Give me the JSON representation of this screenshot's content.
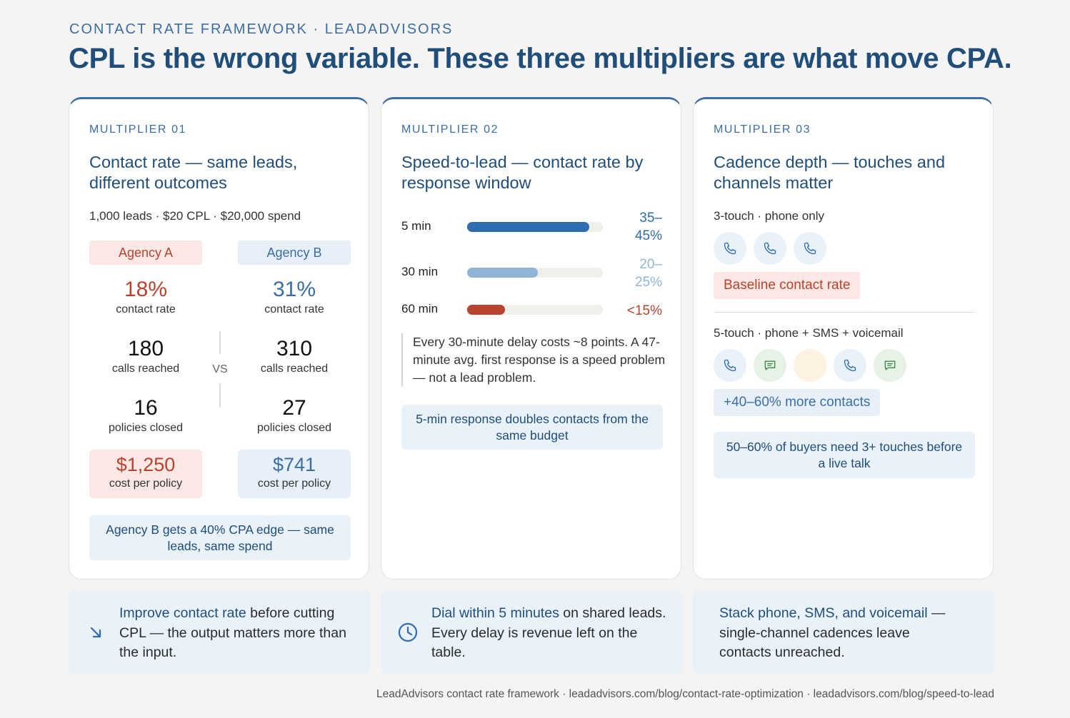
{
  "header": {
    "eyebrow": "CONTACT RATE FRAMEWORK · LEADADVISORS",
    "headline": "CPL is the wrong variable. These three multipliers are what move CPA."
  },
  "card1": {
    "kicker": "MULTIPLIER 01",
    "title": "Contact rate — same leads, different outcomes",
    "meta": "1,000 leads · $20 CPL · $20,000 spend",
    "agency_a": "Agency A",
    "agency_b": "Agency B",
    "vs": "VS",
    "a_rate": "18%",
    "a_rate_label": "contact rate",
    "b_rate": "31%",
    "b_rate_label": "contact rate",
    "a_calls": "180",
    "a_calls_label": "calls reached",
    "b_calls": "310",
    "b_calls_label": "calls reached",
    "a_closed": "16",
    "a_closed_label": "policies closed",
    "b_closed": "27",
    "b_closed_label": "policies closed",
    "a_cost": "$1,250",
    "a_cost_label": "cost per policy",
    "b_cost": "$741",
    "b_cost_label": "cost per policy",
    "callout": "Agency B gets a 40% CPA edge — same leads, same spend"
  },
  "card2": {
    "kicker": "MULTIPLIER 02",
    "title": "Speed-to-lead — contact rate by response window",
    "bars": [
      {
        "label": "5 min",
        "value_text": "35–45%",
        "level": 0.9,
        "color": "#2f6db0",
        "text_color": "#2f6db0"
      },
      {
        "label": "30 min",
        "value_text": "20–25%",
        "level": 0.52,
        "color": "#8fb6d8",
        "text_color": "#8fb6d8"
      },
      {
        "label": "60 min",
        "value_text": "<15%",
        "level": 0.28,
        "color": "#b8432f",
        "text_color": "#b8432f"
      }
    ],
    "quote": "Every 30-minute delay costs ~8 points. A 47-minute avg. first response is a speed problem — not a lead problem.",
    "callout": "5-min response doubles contacts from the same budget"
  },
  "card3": {
    "kicker": "MULTIPLIER 03",
    "title": "Cadence depth — touches and channels matter",
    "seq1_label": "3-touch · phone only",
    "seq1": [
      "phone",
      "phone",
      "phone"
    ],
    "seq1_tag": "Baseline contact rate",
    "seq2_label": "5-touch · phone + SMS + voicemail",
    "seq2": [
      "phone",
      "sms",
      "voicemail",
      "phone",
      "sms"
    ],
    "seq2_tag": "+40–60% more contacts",
    "callout": "50–60% of buyers need 3+ touches before a live talk"
  },
  "takeaways": [
    {
      "icon": "arrow-down-right-icon",
      "strong": "Improve contact rate",
      "rest": " before cutting CPL — the output matters more than the input."
    },
    {
      "icon": "clock-icon",
      "strong": "Dial within 5 minutes",
      "rest": " on shared leads. Every delay is revenue left on the table."
    },
    {
      "icon": "",
      "strong": "Stack phone, SMS, and voicemail",
      "rest": " — single-channel cadences leave contacts unreached."
    }
  ],
  "footer": "LeadAdvisors contact rate framework · leadadvisors.com/blog/contact-rate-optimization · leadadvisors.com/blog/speed-to-lead",
  "colors": {
    "accent": "#1f4e7a",
    "blue": "#3a6ea5",
    "red": "#b8432f",
    "light_blue": "#e9f1f9",
    "light_red": "#fbe7e3"
  }
}
